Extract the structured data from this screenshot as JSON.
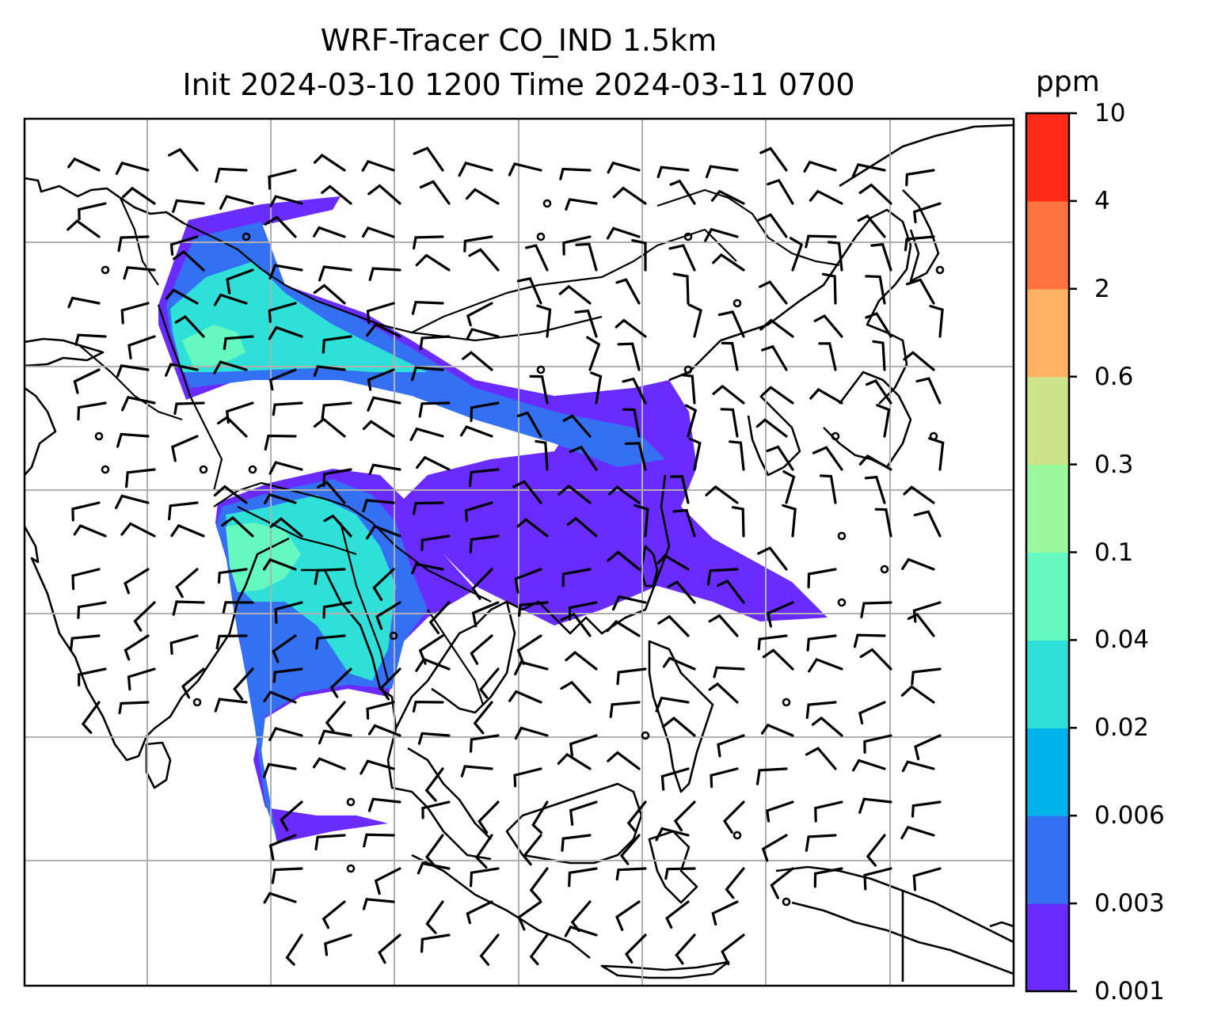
{
  "title": {
    "line1": "WRF-Tracer CO_IND 1.5km",
    "line2": "Init 2024-03-10 1200 Time 2024-03-11 0700"
  },
  "colorbar": {
    "unit": "ppm",
    "levels": [
      "0.001",
      "0.003",
      "0.006",
      "0.02",
      "0.04",
      "0.1",
      "0.3",
      "0.6",
      "2",
      "4",
      "10"
    ],
    "colors": [
      "#6a2bff",
      "#3371f2",
      "#01b3eb",
      "#2ee0d8",
      "#66f8c1",
      "#9bfa9e",
      "#cfe48a",
      "#ffb262",
      "#ff7241",
      "#ff2b17"
    ]
  },
  "map": {
    "gridlines": true,
    "plume_colors": {
      "outer": "#6a2bff",
      "mid": "#3371f2",
      "inner": "#2ee0d8",
      "core": "#66f8c1"
    }
  }
}
